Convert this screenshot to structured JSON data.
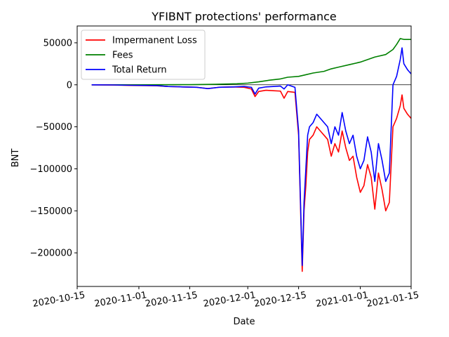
{
  "chart_data": {
    "type": "line",
    "title": "YFIBNT protections' performance",
    "xlabel": "Date",
    "ylabel": "BNT",
    "x_ticks": [
      "2020-10-15",
      "2020-11-01",
      "2020-11-15",
      "2020-12-01",
      "2020-12-15",
      "2021-01-01",
      "2021-01-15"
    ],
    "y_ticks": [
      50000,
      0,
      -50000,
      -100000,
      -150000,
      -200000
    ],
    "y_tick_labels": [
      "50000",
      "0",
      "−50000",
      "−100000",
      "−150000",
      "−200000"
    ],
    "xlim": [
      "2020-10-15",
      "2021-01-15"
    ],
    "ylim": [
      -240000,
      70000
    ],
    "grid": false,
    "legend_position": "upper left",
    "reference_line": {
      "y": 0,
      "color": "#000000"
    },
    "series": [
      {
        "name": "Impermanent Loss",
        "color": "#ff0000",
        "points": [
          [
            "2020-10-19",
            0
          ],
          [
            "2020-10-25",
            -300
          ],
          [
            "2020-10-30",
            -800
          ],
          [
            "2020-11-03",
            -1000
          ],
          [
            "2020-11-06",
            -1200
          ],
          [
            "2020-11-09",
            -2000
          ],
          [
            "2020-11-13",
            -2500
          ],
          [
            "2020-11-17",
            -3000
          ],
          [
            "2020-11-20",
            -4500
          ],
          [
            "2020-11-23",
            -3000
          ],
          [
            "2020-11-27",
            -2500
          ],
          [
            "2020-11-30",
            -3000
          ],
          [
            "2020-12-02",
            -5000
          ],
          [
            "2020-12-03",
            -14000
          ],
          [
            "2020-12-04",
            -8000
          ],
          [
            "2020-12-06",
            -6500
          ],
          [
            "2020-12-08",
            -7000
          ],
          [
            "2020-12-10",
            -7500
          ],
          [
            "2020-12-11",
            -16000
          ],
          [
            "2020-12-12",
            -8000
          ],
          [
            "2020-12-14",
            -9000
          ],
          [
            "2020-12-15",
            -60000
          ],
          [
            "2020-12-16",
            -222000
          ],
          [
            "2020-12-16T12:00",
            -150000
          ],
          [
            "2020-12-17",
            -120000
          ],
          [
            "2020-12-17T12:00",
            -80000
          ],
          [
            "2020-12-18",
            -65000
          ],
          [
            "2020-12-19",
            -60000
          ],
          [
            "2020-12-20",
            -50000
          ],
          [
            "2020-12-21",
            -55000
          ],
          [
            "2020-12-22",
            -60000
          ],
          [
            "2020-12-23",
            -65000
          ],
          [
            "2020-12-24",
            -85000
          ],
          [
            "2020-12-25",
            -70000
          ],
          [
            "2020-12-26",
            -80000
          ],
          [
            "2020-12-27",
            -55000
          ],
          [
            "2020-12-28",
            -75000
          ],
          [
            "2020-12-29",
            -90000
          ],
          [
            "2020-12-30",
            -85000
          ],
          [
            "2020-12-31",
            -110000
          ],
          [
            "2021-01-01",
            -128000
          ],
          [
            "2021-01-02",
            -120000
          ],
          [
            "2021-01-03",
            -95000
          ],
          [
            "2021-01-04",
            -110000
          ],
          [
            "2021-01-05",
            -148000
          ],
          [
            "2021-01-06",
            -105000
          ],
          [
            "2021-01-07",
            -125000
          ],
          [
            "2021-01-08",
            -150000
          ],
          [
            "2021-01-09",
            -140000
          ],
          [
            "2021-01-10",
            -50000
          ],
          [
            "2021-01-11",
            -40000
          ],
          [
            "2021-01-12",
            -25000
          ],
          [
            "2021-01-12T12:00",
            -12000
          ],
          [
            "2021-01-13",
            -28000
          ],
          [
            "2021-01-14",
            -35000
          ],
          [
            "2021-01-15",
            -40000
          ]
        ]
      },
      {
        "name": "Fees",
        "color": "#008000",
        "points": [
          [
            "2020-10-19",
            0
          ],
          [
            "2020-11-01",
            0
          ],
          [
            "2020-11-15",
            200
          ],
          [
            "2020-11-22",
            600
          ],
          [
            "2020-11-28",
            1200
          ],
          [
            "2020-12-01",
            2000
          ],
          [
            "2020-12-04",
            3500
          ],
          [
            "2020-12-07",
            5500
          ],
          [
            "2020-12-10",
            7000
          ],
          [
            "2020-12-12",
            9000
          ],
          [
            "2020-12-15",
            10000
          ],
          [
            "2020-12-17",
            12000
          ],
          [
            "2020-12-19",
            14000
          ],
          [
            "2020-12-22",
            16000
          ],
          [
            "2020-12-24",
            19000
          ],
          [
            "2020-12-26",
            21000
          ],
          [
            "2020-12-29",
            24000
          ],
          [
            "2021-01-01",
            27000
          ],
          [
            "2021-01-03",
            30000
          ],
          [
            "2021-01-05",
            33000
          ],
          [
            "2021-01-08",
            36000
          ],
          [
            "2021-01-10",
            42000
          ],
          [
            "2021-01-11",
            48000
          ],
          [
            "2021-01-12",
            55000
          ],
          [
            "2021-01-13",
            54000
          ],
          [
            "2021-01-15",
            54000
          ]
        ]
      },
      {
        "name": "Total Return",
        "color": "#0000ff",
        "points": [
          [
            "2020-10-19",
            0
          ],
          [
            "2020-10-25",
            -200
          ],
          [
            "2020-10-30",
            -600
          ],
          [
            "2020-11-03",
            -800
          ],
          [
            "2020-11-06",
            -1000
          ],
          [
            "2020-11-09",
            -2000
          ],
          [
            "2020-11-13",
            -2500
          ],
          [
            "2020-11-17",
            -3000
          ],
          [
            "2020-11-20",
            -4500
          ],
          [
            "2020-11-23",
            -3000
          ],
          [
            "2020-11-27",
            -2500
          ],
          [
            "2020-11-30",
            -2000
          ],
          [
            "2020-12-02",
            -3000
          ],
          [
            "2020-12-03",
            -11000
          ],
          [
            "2020-12-04",
            -4000
          ],
          [
            "2020-12-06",
            -2500
          ],
          [
            "2020-12-08",
            -2000
          ],
          [
            "2020-12-10",
            -1500
          ],
          [
            "2020-12-11",
            -5000
          ],
          [
            "2020-12-12",
            0
          ],
          [
            "2020-12-14",
            -3000
          ],
          [
            "2020-12-15",
            -55000
          ],
          [
            "2020-12-16",
            -215000
          ],
          [
            "2020-12-16T12:00",
            -140000
          ],
          [
            "2020-12-17",
            -100000
          ],
          [
            "2020-12-17T12:00",
            -60000
          ],
          [
            "2020-12-18",
            -50000
          ],
          [
            "2020-12-19",
            -45000
          ],
          [
            "2020-12-20",
            -35000
          ],
          [
            "2020-12-21",
            -40000
          ],
          [
            "2020-12-22",
            -45000
          ],
          [
            "2020-12-23",
            -50000
          ],
          [
            "2020-12-24",
            -70000
          ],
          [
            "2020-12-25",
            -50000
          ],
          [
            "2020-12-26",
            -60000
          ],
          [
            "2020-12-27",
            -33000
          ],
          [
            "2020-12-28",
            -55000
          ],
          [
            "2020-12-29",
            -70000
          ],
          [
            "2020-12-30",
            -60000
          ],
          [
            "2020-12-31",
            -85000
          ],
          [
            "2021-01-01",
            -100000
          ],
          [
            "2021-01-02",
            -90000
          ],
          [
            "2021-01-03",
            -62000
          ],
          [
            "2021-01-04",
            -80000
          ],
          [
            "2021-01-05",
            -115000
          ],
          [
            "2021-01-06",
            -70000
          ],
          [
            "2021-01-07",
            -90000
          ],
          [
            "2021-01-08",
            -115000
          ],
          [
            "2021-01-09",
            -105000
          ],
          [
            "2021-01-10",
            0
          ],
          [
            "2021-01-11",
            10000
          ],
          [
            "2021-01-12",
            30000
          ],
          [
            "2021-01-12T12:00",
            44000
          ],
          [
            "2021-01-13",
            25000
          ],
          [
            "2021-01-14",
            18000
          ],
          [
            "2021-01-15",
            13000
          ]
        ]
      }
    ]
  }
}
